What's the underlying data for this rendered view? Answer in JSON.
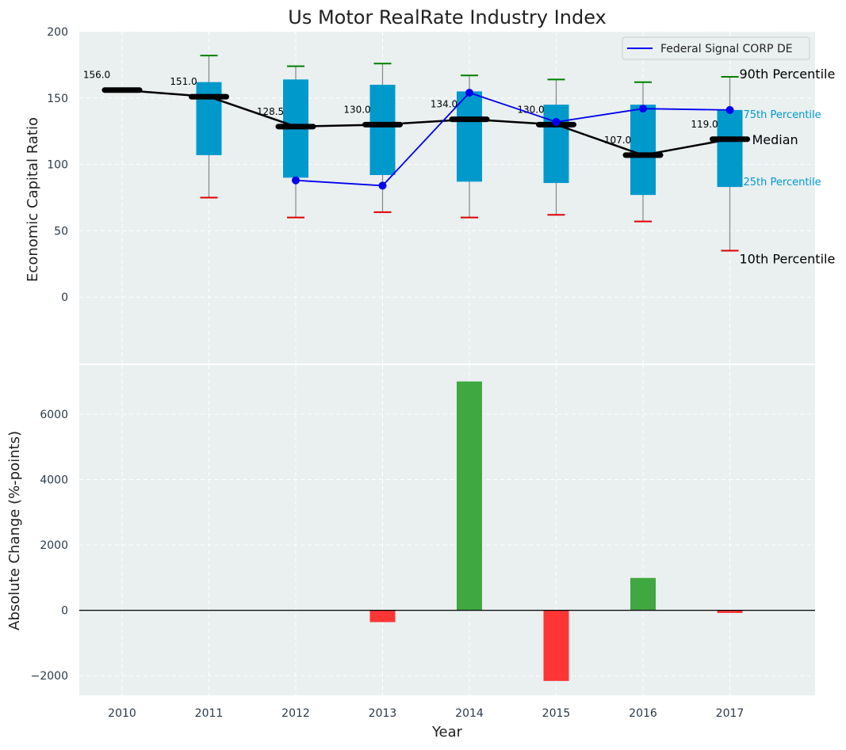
{
  "chart_data": {
    "type": "box+line+bar",
    "title": "Us Motor RealRate Industry Index",
    "xlabel": "Year",
    "years": [
      "2010",
      "2011",
      "2012",
      "2013",
      "2014",
      "2015",
      "2016",
      "2017"
    ],
    "top_panel": {
      "ylabel": "Economic Capital Ratio",
      "ylim": [
        -50,
        200
      ],
      "yticks": [
        0,
        50,
        100,
        150,
        200
      ],
      "p10": [
        null,
        75,
        60,
        64,
        60,
        62,
        57,
        35
      ],
      "p25": [
        null,
        107,
        90,
        92,
        87,
        86,
        77,
        83
      ],
      "median": [
        156,
        151,
        128.5,
        130,
        134,
        130,
        107,
        119
      ],
      "median_labels": [
        "156.0",
        "151.0",
        "128.5",
        "130.0",
        "134.0",
        "130.0",
        "107.0",
        "119.0"
      ],
      "p75": [
        null,
        162,
        164,
        160,
        155,
        145,
        145,
        141
      ],
      "p90": [
        null,
        182,
        174,
        176,
        167,
        164,
        162,
        166
      ],
      "series": [
        {
          "name": "Federal Signal CORP DE",
          "values": [
            null,
            null,
            88,
            84,
            154,
            132,
            142,
            141
          ],
          "color": "#0000ee"
        }
      ],
      "annotations": {
        "p90": "90th Percentile",
        "p75": "75th Percentile",
        "median": "Median",
        "p25": "25th Percentile",
        "p10": "10th Percentile"
      },
      "legend_position": "top-right",
      "grid": true
    },
    "bottom_panel": {
      "ylabel": "Absolute Change (%-points)",
      "ylim": [
        -2600,
        7500
      ],
      "yticks": [
        -2000,
        0,
        2000,
        4000,
        6000
      ],
      "ytick_labels": [
        "−2000",
        "0",
        "2000",
        "4000",
        "6000"
      ],
      "values": [
        0,
        0,
        0,
        -360,
        7000,
        -2160,
        990,
        -80
      ],
      "positive_color": "#2ca02c",
      "negative_color": "#ff2020",
      "grid": true
    },
    "colors": {
      "box": "#0099cc",
      "median_line": "#000000",
      "p90_cap": "#008000",
      "p10_cap": "#dd0000",
      "background": "#eaeff0"
    }
  }
}
